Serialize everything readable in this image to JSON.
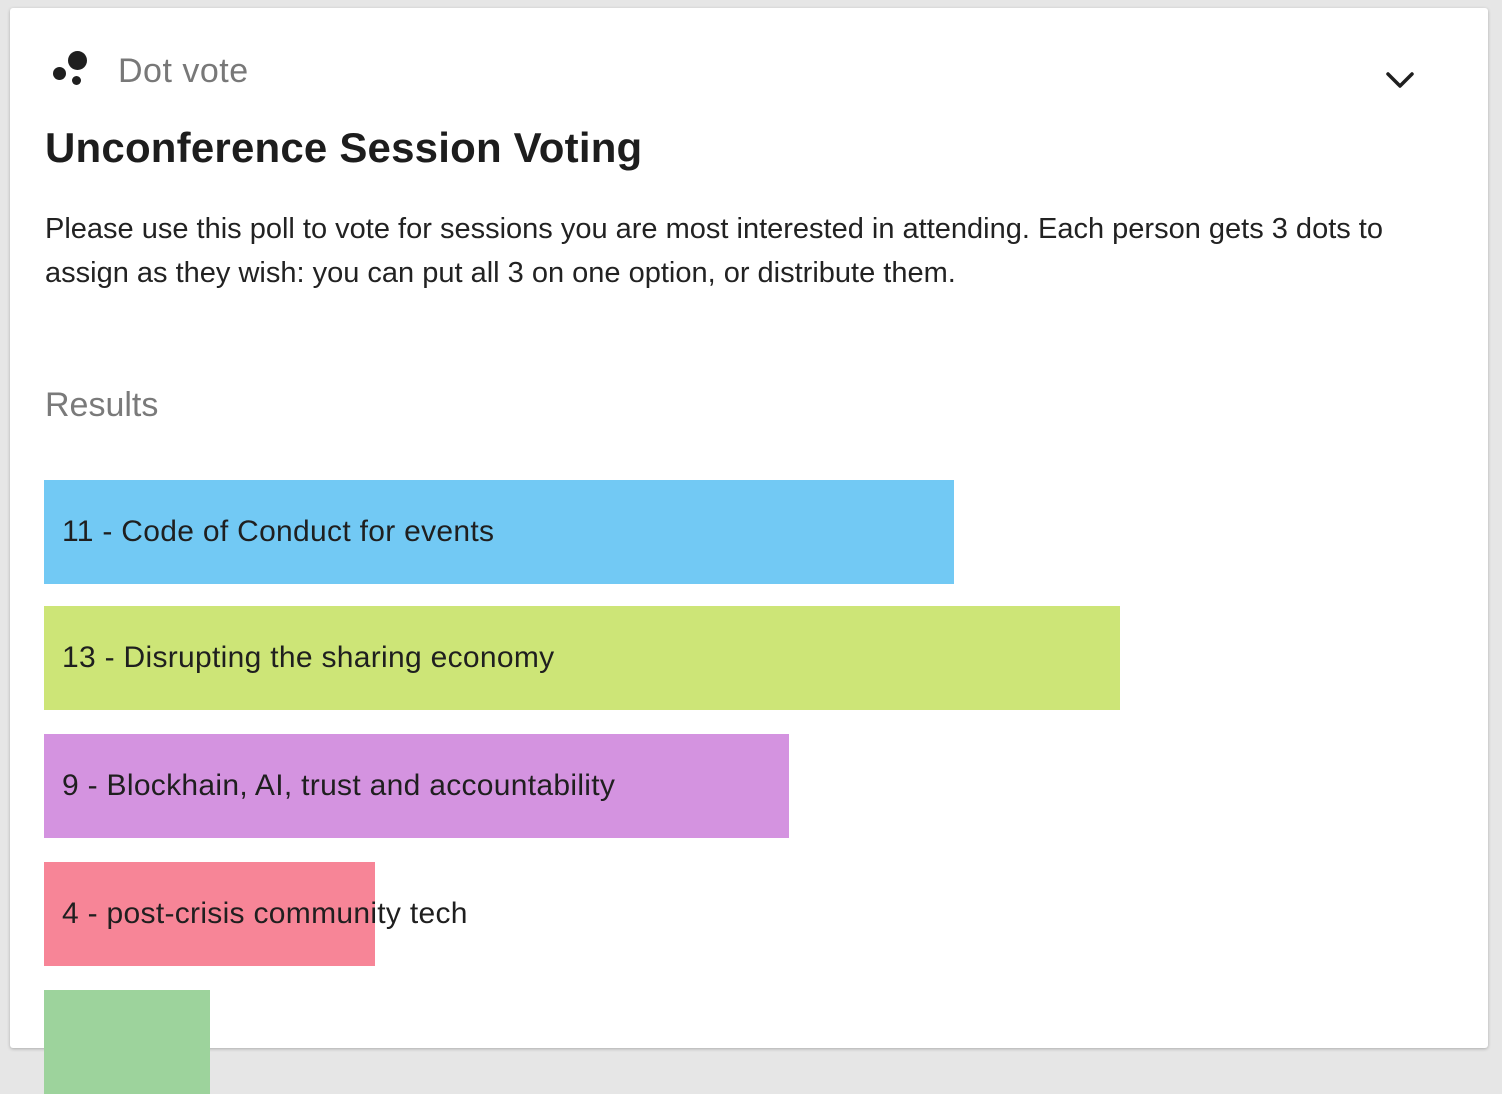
{
  "poll": {
    "type_label": "Dot vote",
    "title": "Unconference Session Voting",
    "description": "Please use this poll to vote for sessions you are most interested in attending. Each person gets 3 dots to assign as they wish: you can put all 3 on one option, or distribute them.",
    "results_heading": "Results",
    "max_votes": 13
  },
  "results": [
    {
      "label": "11 - Code of Conduct for events",
      "votes": 11,
      "color": "#72c9f4"
    },
    {
      "label": "13 - Disrupting the sharing economy",
      "votes": 13,
      "color": "#cde577"
    },
    {
      "label": "9 - Blockhain, AI, trust and accountability",
      "votes": 9,
      "color": "#d493e0"
    },
    {
      "label": "4 - post-crisis community tech",
      "votes": 4,
      "color": "#f78597"
    },
    {
      "label": "",
      "votes": 2,
      "color": "#9dd39c"
    }
  ],
  "icons": {
    "poll_type": "dot-vote-icon",
    "collapse": "chevron-down-icon"
  }
}
